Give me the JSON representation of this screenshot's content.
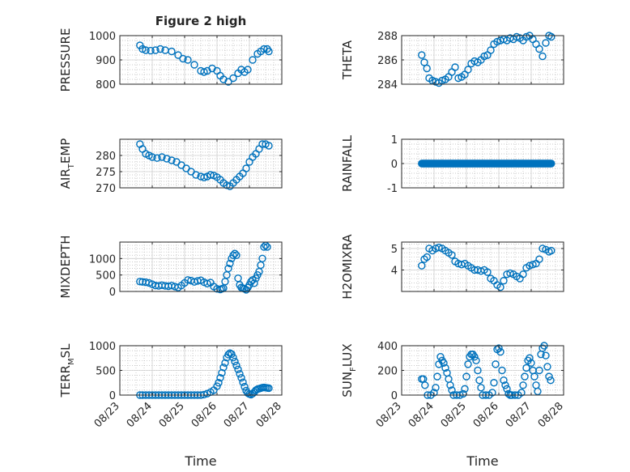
{
  "colors": {
    "marker": "#0072BD",
    "axis": "#262626",
    "grid": "#b8b8b8",
    "background": "#ffffff"
  },
  "chart_data": [
    {
      "type": "scatter",
      "panel": "pressure",
      "title": "Figure 2 high",
      "ylabel": "PRESSURE",
      "ylabel_sub": "",
      "ylabel_tail": "",
      "xlim": [
        "08/23",
        "08/28"
      ],
      "ylim": [
        800,
        1000
      ],
      "yticks": [
        "800",
        "900",
        "1000"
      ],
      "grid": true,
      "series": [
        {
          "x": [
            23.62,
            23.7,
            23.8,
            23.95,
            24.1,
            24.25,
            24.4,
            24.6,
            24.8,
            24.95,
            25.1,
            25.3,
            25.5,
            25.6,
            25.7,
            25.85,
            26.0,
            26.1,
            26.2,
            26.35,
            26.5,
            26.65,
            26.75,
            26.85,
            26.95,
            27.1,
            27.25,
            27.35,
            27.45,
            27.55,
            27.6
          ],
          "y": [
            960,
            945,
            940,
            938,
            940,
            945,
            940,
            935,
            920,
            905,
            900,
            880,
            855,
            850,
            855,
            865,
            855,
            835,
            820,
            810,
            825,
            845,
            860,
            850,
            860,
            900,
            925,
            935,
            945,
            945,
            935
          ]
        }
      ]
    },
    {
      "type": "scatter",
      "panel": "theta",
      "title": "",
      "ylabel": "THETA",
      "ylabel_sub": "",
      "ylabel_tail": "",
      "xlim": [
        "08/23",
        "08/28"
      ],
      "ylim": [
        284,
        288
      ],
      "yticks": [
        "284",
        "286",
        "288"
      ],
      "grid": true,
      "series": [
        {
          "x": [
            23.62,
            23.7,
            23.78,
            23.85,
            23.95,
            24.05,
            24.15,
            24.25,
            24.35,
            24.45,
            24.55,
            24.65,
            24.75,
            24.85,
            24.95,
            25.05,
            25.15,
            25.25,
            25.35,
            25.45,
            25.55,
            25.65,
            25.75,
            25.85,
            25.95,
            26.05,
            26.15,
            26.25,
            26.35,
            26.45,
            26.55,
            26.65,
            26.75,
            26.85,
            26.95,
            27.05,
            27.15,
            27.25,
            27.35,
            27.45,
            27.55,
            27.62
          ],
          "y": [
            286.4,
            285.8,
            285.3,
            284.5,
            284.3,
            284.2,
            284.1,
            284.3,
            284.4,
            284.6,
            285.0,
            285.4,
            284.5,
            284.6,
            284.8,
            285.2,
            285.7,
            285.9,
            285.8,
            286.0,
            286.3,
            286.4,
            286.8,
            287.3,
            287.5,
            287.6,
            287.7,
            287.6,
            287.8,
            287.7,
            287.9,
            287.8,
            287.6,
            287.9,
            288.0,
            287.7,
            287.3,
            286.9,
            286.3,
            287.4,
            288.0,
            287.9
          ]
        }
      ]
    },
    {
      "type": "scatter",
      "panel": "air_temp",
      "title": "",
      "ylabel": "AIR",
      "ylabel_sub": "T",
      "ylabel_tail": "EMP",
      "xlim": [
        "08/23",
        "08/28"
      ],
      "ylim": [
        270,
        285
      ],
      "yticks": [
        "270",
        "275",
        "280"
      ],
      "grid": true,
      "series": [
        {
          "x": [
            23.62,
            23.7,
            23.8,
            23.9,
            24.0,
            24.15,
            24.3,
            24.45,
            24.6,
            24.75,
            24.9,
            25.05,
            25.2,
            25.35,
            25.5,
            25.6,
            25.7,
            25.8,
            25.9,
            26.0,
            26.1,
            26.2,
            26.3,
            26.4,
            26.5,
            26.6,
            26.7,
            26.8,
            26.9,
            27.0,
            27.1,
            27.2,
            27.3,
            27.4,
            27.5,
            27.6
          ],
          "y": [
            283.5,
            282,
            280.5,
            280,
            279.5,
            279.2,
            279.5,
            279,
            278.5,
            278,
            277,
            276,
            275,
            274,
            273.5,
            273.2,
            273.5,
            274,
            273.8,
            273.3,
            272.5,
            271.5,
            270.8,
            270.5,
            271.5,
            272.5,
            273.5,
            274.5,
            276,
            278,
            279.5,
            280.5,
            282,
            283.5,
            283.5,
            283
          ]
        }
      ]
    },
    {
      "type": "scatter",
      "panel": "rainfall",
      "title": "",
      "ylabel": "RAINFALL",
      "ylabel_sub": "",
      "ylabel_tail": "",
      "xlim": [
        "08/23",
        "08/28"
      ],
      "ylim": [
        -1,
        1
      ],
      "yticks": [
        "-1",
        "0",
        "1"
      ],
      "grid": true,
      "series": [
        {
          "x_range": [
            23.62,
            27.62
          ],
          "constant_y": 0
        }
      ]
    },
    {
      "type": "scatter",
      "panel": "mixdepth",
      "title": "",
      "ylabel": "MIXDEPTH",
      "ylabel_sub": "",
      "ylabel_tail": "",
      "xlim": [
        "08/23",
        "08/28"
      ],
      "ylim": [
        0,
        1500
      ],
      "yticks": [
        "0",
        "500",
        "1000"
      ],
      "grid": true,
      "series": [
        {
          "x": [
            23.62,
            23.7,
            23.8,
            23.9,
            24.0,
            24.1,
            24.2,
            24.3,
            24.4,
            24.5,
            24.6,
            24.7,
            24.8,
            24.9,
            25.0,
            25.1,
            25.2,
            25.3,
            25.4,
            25.5,
            25.6,
            25.7,
            25.8,
            25.9,
            26.0,
            26.1,
            26.15,
            26.2,
            26.25,
            26.3,
            26.35,
            26.4,
            26.45,
            26.5,
            26.55,
            26.6,
            26.65,
            26.7,
            26.75,
            26.8,
            26.85,
            26.9,
            26.95,
            27.0,
            27.05,
            27.1,
            27.15,
            27.2,
            27.25,
            27.3,
            27.35,
            27.4,
            27.45,
            27.5,
            27.55
          ],
          "y": [
            300,
            290,
            280,
            260,
            220,
            180,
            170,
            190,
            170,
            160,
            180,
            150,
            120,
            180,
            260,
            350,
            330,
            290,
            320,
            340,
            280,
            240,
            270,
            150,
            80,
            60,
            80,
            100,
            300,
            500,
            700,
            850,
            1000,
            1100,
            1150,
            1100,
            400,
            200,
            120,
            100,
            80,
            50,
            120,
            200,
            300,
            350,
            250,
            400,
            500,
            600,
            800,
            1000,
            1350,
            1400,
            1350
          ]
        }
      ]
    },
    {
      "type": "scatter",
      "panel": "h2omixra",
      "title": "",
      "ylabel": "H2OMIXRA",
      "ylabel_sub": "",
      "ylabel_tail": "",
      "xlim": [
        "08/23",
        "08/28"
      ],
      "ylim": [
        3,
        5.3
      ],
      "yticks": [
        "4",
        "5"
      ],
      "grid": true,
      "series": [
        {
          "x": [
            23.62,
            23.7,
            23.78,
            23.85,
            23.95,
            24.05,
            24.15,
            24.25,
            24.35,
            24.45,
            24.55,
            24.65,
            24.75,
            24.85,
            24.95,
            25.05,
            25.15,
            25.25,
            25.35,
            25.45,
            25.55,
            25.65,
            25.75,
            25.85,
            25.95,
            26.05,
            26.15,
            26.25,
            26.35,
            26.45,
            26.55,
            26.65,
            26.75,
            26.85,
            26.95,
            27.05,
            27.15,
            27.25,
            27.35,
            27.45,
            27.55,
            27.62
          ],
          "y": [
            4.2,
            4.5,
            4.6,
            5.0,
            4.9,
            5.0,
            5.05,
            5.0,
            4.9,
            4.8,
            4.7,
            4.4,
            4.3,
            4.25,
            4.3,
            4.2,
            4.1,
            4.0,
            4.0,
            3.95,
            4.0,
            3.9,
            3.6,
            3.5,
            3.3,
            3.2,
            3.5,
            3.8,
            3.85,
            3.8,
            3.7,
            3.6,
            3.8,
            4.1,
            4.2,
            4.25,
            4.3,
            4.5,
            5.0,
            4.95,
            4.85,
            4.9
          ]
        }
      ]
    },
    {
      "type": "scatter",
      "panel": "terr_msl",
      "title": "",
      "ylabel": "TERR",
      "ylabel_sub": "M",
      "ylabel_tail": "SL",
      "xlim": [
        "08/23",
        "08/28"
      ],
      "ylim": [
        0,
        1000
      ],
      "yticks": [
        "0",
        "500",
        "1000"
      ],
      "grid": true,
      "series": [
        {
          "x": [
            23.62,
            23.7,
            23.8,
            23.9,
            24.0,
            24.1,
            24.2,
            24.3,
            24.4,
            24.5,
            24.6,
            24.7,
            24.8,
            24.9,
            25.0,
            25.1,
            25.2,
            25.3,
            25.4,
            25.5,
            25.6,
            25.7,
            25.8,
            25.9,
            26.0,
            26.05,
            26.1,
            26.15,
            26.2,
            26.25,
            26.3,
            26.35,
            26.4,
            26.45,
            26.5,
            26.55,
            26.6,
            26.65,
            26.7,
            26.75,
            26.8,
            26.85,
            26.9,
            26.95,
            27.0,
            27.05,
            27.1,
            27.15,
            27.2,
            27.25,
            27.3,
            27.35,
            27.4,
            27.45,
            27.5,
            27.55,
            27.6
          ],
          "y": [
            0,
            0,
            0,
            0,
            0,
            0,
            0,
            0,
            0,
            0,
            0,
            0,
            0,
            0,
            0,
            0,
            0,
            0,
            0,
            0,
            10,
            30,
            60,
            100,
            180,
            250,
            350,
            450,
            560,
            650,
            760,
            820,
            850,
            830,
            760,
            680,
            600,
            520,
            430,
            350,
            260,
            170,
            90,
            40,
            20,
            10,
            30,
            60,
            100,
            120,
            130,
            140,
            150,
            155,
            150,
            145,
            140
          ]
        }
      ]
    },
    {
      "type": "scatter",
      "panel": "sun_flux",
      "title": "",
      "ylabel": "SUN",
      "ylabel_sub": "F",
      "ylabel_tail": "LUX",
      "xlim": [
        "08/23",
        "08/28"
      ],
      "ylim": [
        0,
        400
      ],
      "yticks": [
        "0",
        "200",
        "400"
      ],
      "grid": true,
      "series": [
        {
          "x": [
            23.62,
            23.67,
            23.72,
            23.8,
            23.9,
            24.0,
            24.05,
            24.1,
            24.15,
            24.2,
            24.25,
            24.3,
            24.35,
            24.4,
            24.45,
            24.5,
            24.55,
            24.6,
            24.7,
            24.8,
            24.9,
            24.95,
            25.0,
            25.05,
            25.1,
            25.15,
            25.2,
            25.25,
            25.3,
            25.35,
            25.4,
            25.45,
            25.5,
            25.6,
            25.7,
            25.8,
            25.85,
            25.9,
            25.95,
            26.0,
            26.05,
            26.1,
            26.15,
            26.2,
            26.25,
            26.3,
            26.35,
            26.4,
            26.5,
            26.6,
            26.7,
            26.75,
            26.8,
            26.85,
            26.9,
            26.95,
            27.0,
            27.05,
            27.1,
            27.15,
            27.2,
            27.25,
            27.3,
            27.35,
            27.4,
            27.45,
            27.5,
            27.55,
            27.6
          ],
          "y": [
            130,
            130,
            80,
            0,
            0,
            20,
            60,
            150,
            250,
            310,
            280,
            260,
            220,
            180,
            130,
            80,
            40,
            0,
            0,
            0,
            10,
            50,
            150,
            250,
            310,
            330,
            330,
            310,
            280,
            200,
            120,
            60,
            0,
            0,
            0,
            20,
            100,
            250,
            370,
            380,
            350,
            200,
            120,
            80,
            50,
            10,
            0,
            0,
            0,
            0,
            20,
            80,
            150,
            220,
            280,
            300,
            260,
            200,
            150,
            80,
            30,
            200,
            330,
            380,
            400,
            320,
            230,
            150,
            120
          ]
        }
      ]
    }
  ],
  "xaxis": {
    "ticks": [
      "08/23",
      "08/24",
      "08/25",
      "08/26",
      "08/27",
      "08/28"
    ],
    "label": "Time"
  }
}
